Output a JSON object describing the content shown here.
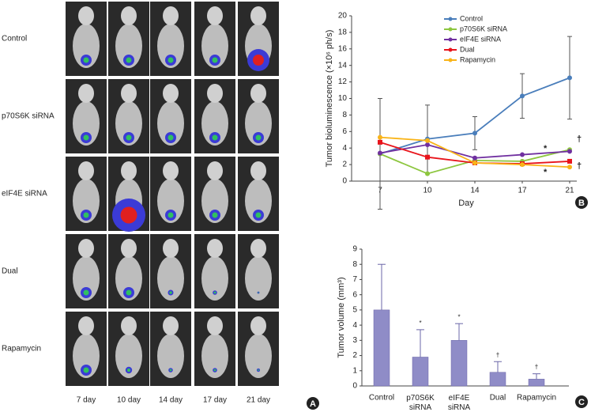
{
  "panel_a": {
    "rows": [
      "Control",
      "p70S6K siRNA",
      "eIF4E siRNA",
      "Dual",
      "Rapamycin"
    ],
    "days": [
      "7 day",
      "10 day",
      "14 day",
      "17 day",
      "21 day"
    ],
    "panel_label": "A"
  },
  "chart_data": [
    {
      "type": "line",
      "panel_label": "B",
      "x_label": "Day",
      "y_label": "Tumor bioluminescence (×10⁶ ph/s)",
      "categories": [
        "7",
        "10",
        "14",
        "17",
        "21"
      ],
      "ylim": [
        0,
        20
      ],
      "yticks": [
        0,
        2,
        4,
        6,
        8,
        10,
        12,
        14,
        16,
        18,
        20
      ],
      "series": [
        {
          "name": "Control",
          "color": "#4a7ebb",
          "values": [
            3.3,
            5.1,
            5.8,
            10.3,
            12.5
          ],
          "errors": [
            6.7,
            4.1,
            2.0,
            2.7,
            5.0
          ]
        },
        {
          "name": "p70S6K siRNA",
          "color": "#8dc63f",
          "values": [
            3.3,
            0.9,
            2.5,
            2.4,
            3.8
          ]
        },
        {
          "name": "eIF4E siRNA",
          "color": "#7030a0",
          "values": [
            3.4,
            4.4,
            2.8,
            3.2,
            3.6
          ]
        },
        {
          "name": "Dual",
          "color": "#e8141b",
          "values": [
            4.7,
            2.9,
            2.2,
            2.1,
            2.4
          ]
        },
        {
          "name": "Rapamycin",
          "color": "#f9b418",
          "values": [
            5.3,
            4.9,
            2.2,
            2.0,
            1.7
          ]
        }
      ],
      "annotations": [
        "*",
        "*",
        "†",
        "†"
      ]
    },
    {
      "type": "bar",
      "panel_label": "C",
      "y_label": "Tumor volume (mm³)",
      "color": "#8f8cc7",
      "categories": [
        "Control",
        "p70S6K siRNA",
        "eIF4E siRNA",
        "Dual",
        "Rapamycin"
      ],
      "values": [
        5.0,
        1.9,
        3.0,
        0.9,
        0.45
      ],
      "errors": [
        3.0,
        1.8,
        1.1,
        0.7,
        0.35
      ],
      "annotations": [
        null,
        "*",
        "*",
        "†",
        "†"
      ],
      "ylim": [
        0,
        9
      ],
      "yticks": [
        0,
        1,
        2,
        3,
        4,
        5,
        6,
        7,
        8,
        9
      ]
    }
  ]
}
